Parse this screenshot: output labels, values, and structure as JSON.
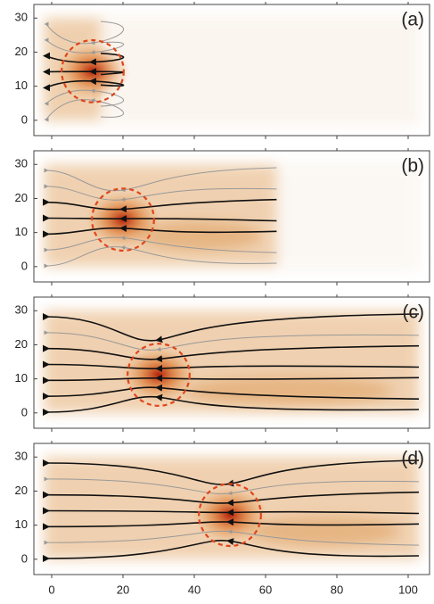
{
  "chart_data": [
    {
      "type": "heatmap",
      "label": "(a)",
      "xlim": [
        -5,
        106
      ],
      "ylim": [
        -4.5,
        34
      ],
      "xticks": [
        0,
        20,
        40,
        60,
        80,
        100
      ],
      "yticks": [
        0,
        10,
        20,
        30
      ],
      "marker": {
        "x": 11.5,
        "y": 14.4,
        "r": 8.7
      }
    },
    {
      "type": "heatmap",
      "label": "(b)",
      "xlim": [
        -5,
        106
      ],
      "ylim": [
        -4.5,
        34
      ],
      "xticks": [
        0,
        20,
        40,
        60,
        80,
        100
      ],
      "yticks": [
        0,
        10,
        20,
        30
      ],
      "marker": {
        "x": 20,
        "y": 13.8,
        "r": 8.7
      }
    },
    {
      "type": "heatmap",
      "label": "(c)",
      "xlim": [
        -5,
        106
      ],
      "ylim": [
        -4.5,
        34
      ],
      "xticks": [
        0,
        20,
        40,
        60,
        80,
        100
      ],
      "yticks": [
        0,
        10,
        20,
        30
      ],
      "marker": {
        "x": 30,
        "y": 11.2,
        "r": 8.7
      }
    },
    {
      "type": "heatmap",
      "label": "(d)",
      "xlim": [
        -5,
        106
      ],
      "ylim": [
        -4.5,
        34
      ],
      "xticks": [
        0,
        20,
        40,
        60,
        80,
        100
      ],
      "yticks": [
        0,
        10,
        20,
        30
      ],
      "marker": {
        "x": 50,
        "y": 13,
        "r": 8.7
      }
    }
  ]
}
